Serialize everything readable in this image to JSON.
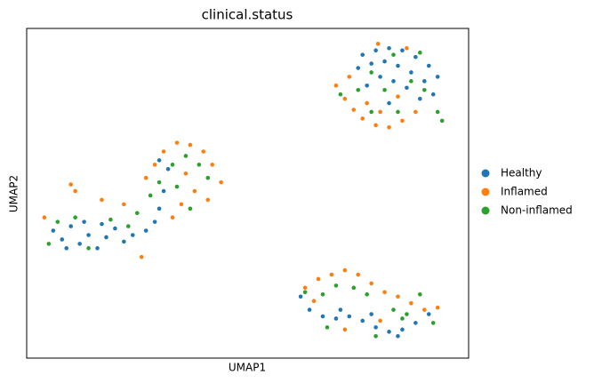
{
  "chart_data": {
    "type": "scatter",
    "title": "clinical.status",
    "x_label": "UMAP1",
    "y_label": "UMAP2",
    "xlim": [
      0,
      20
    ],
    "ylim": [
      0,
      15
    ],
    "legend": "right",
    "series": [
      {
        "name": "Healthy",
        "color": "#1f77b4",
        "x": [
          15.2,
          15.8,
          16.4,
          17.0,
          17.6,
          18.2,
          18.6,
          15.0,
          15.6,
          16.2,
          16.8,
          17.4,
          18.0,
          16.0,
          16.6,
          17.2,
          18.4,
          17.8,
          15.4,
          16.4,
          1.2,
          1.6,
          2.0,
          2.4,
          2.8,
          3.2,
          3.6,
          4.0,
          4.4,
          1.8,
          2.6,
          3.4,
          4.8,
          5.4,
          5.8,
          6.0,
          6.2,
          6.4,
          6.0,
          12.4,
          12.8,
          13.4,
          14.0,
          14.6,
          15.2,
          15.8,
          16.4,
          17.0,
          17.6,
          18.2,
          16.8,
          14.2,
          15.6
        ],
        "values": [
          13.8,
          14.0,
          14.1,
          14.0,
          13.7,
          13.3,
          12.8,
          13.2,
          13.4,
          13.5,
          13.3,
          13.0,
          12.6,
          12.8,
          12.6,
          12.3,
          12.0,
          11.8,
          12.4,
          11.6,
          5.8,
          5.4,
          6.0,
          5.2,
          5.6,
          5.0,
          5.5,
          5.9,
          5.3,
          5.0,
          6.2,
          6.1,
          5.6,
          5.8,
          6.2,
          6.8,
          7.6,
          8.6,
          9.0,
          2.8,
          2.2,
          1.9,
          1.8,
          1.9,
          1.7,
          1.4,
          1.2,
          1.3,
          1.6,
          2.0,
          1.0,
          2.2,
          2.0
        ]
      },
      {
        "name": "Inflamed",
        "color": "#ff7f0e",
        "x": [
          14.0,
          14.4,
          14.8,
          15.2,
          15.8,
          16.4,
          17.0,
          17.6,
          14.6,
          15.4,
          16.0,
          16.8,
          15.9,
          17.2,
          5.4,
          5.8,
          6.2,
          6.8,
          7.4,
          8.0,
          8.4,
          8.8,
          7.2,
          7.6,
          7.0,
          6.6,
          2.0,
          2.2,
          3.4,
          4.4,
          5.2,
          0.8,
          8.2,
          12.6,
          13.2,
          13.8,
          14.4,
          15.0,
          15.6,
          16.2,
          16.8,
          17.4,
          18.0,
          18.6,
          14.4,
          16.0,
          13.0
        ],
        "values": [
          12.4,
          11.8,
          11.3,
          10.9,
          10.6,
          10.5,
          10.8,
          11.2,
          12.8,
          11.6,
          11.2,
          11.9,
          14.3,
          14.1,
          8.2,
          8.8,
          9.4,
          9.8,
          9.7,
          9.4,
          8.8,
          8.0,
          8.4,
          7.6,
          7.0,
          6.4,
          7.9,
          7.6,
          7.2,
          7.0,
          4.6,
          6.4,
          7.2,
          3.2,
          3.6,
          3.8,
          4.0,
          3.8,
          3.4,
          3.0,
          2.8,
          2.5,
          2.2,
          2.3,
          1.3,
          1.7,
          2.6
        ]
      },
      {
        "name": "Non-inflamed",
        "color": "#2ca02c",
        "x": [
          14.2,
          15.0,
          15.6,
          16.2,
          16.8,
          17.4,
          18.0,
          18.6,
          18.8,
          15.6,
          16.6,
          17.8,
          1.4,
          2.2,
          2.8,
          3.8,
          4.6,
          5.0,
          5.6,
          6.0,
          6.6,
          7.2,
          7.8,
          8.2,
          6.8,
          7.4,
          1.0,
          12.6,
          13.4,
          14.0,
          14.8,
          15.4,
          16.6,
          17.2,
          17.8,
          18.4,
          15.8,
          13.6,
          17.0
        ],
        "values": [
          12.0,
          12.2,
          11.2,
          12.2,
          11.2,
          12.6,
          12.2,
          11.2,
          10.8,
          13.0,
          13.8,
          13.9,
          6.2,
          6.4,
          5.0,
          6.3,
          6.0,
          6.6,
          7.4,
          8.0,
          8.8,
          9.2,
          8.8,
          8.2,
          7.8,
          6.8,
          5.2,
          3.0,
          2.9,
          3.3,
          3.2,
          2.9,
          2.2,
          2.0,
          2.9,
          1.6,
          1.0,
          1.4,
          1.8
        ]
      }
    ]
  }
}
